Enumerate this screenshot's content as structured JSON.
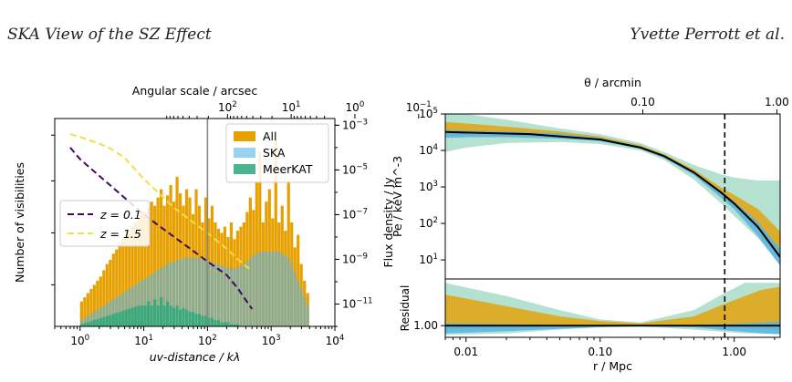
{
  "header": {
    "left_title": "SKA View of the SZ Effect",
    "right_author": "Yvette Perrott et al."
  },
  "colors": {
    "all": "#e6a000",
    "ska": "#56b4e9",
    "meerkat": "#2ca87a",
    "z01": "#3f0a5a",
    "z15": "#f5dd42",
    "right_black": "#000000"
  },
  "chart_data": [
    {
      "type": "histogram",
      "xlabel": "uv-distance / kλ",
      "x_top_label": "Angular scale / arcsec",
      "ylabel": "Number of visibilities",
      "y2label": "Flux density / Jy",
      "x_scale": "log",
      "xlim": [
        0.4,
        10000
      ],
      "x_ticks": [
        1,
        10,
        100,
        1000,
        10000
      ],
      "x_tick_labels": [
        "10^0",
        "10^1",
        "10^2",
        "10^3",
        "10^4"
      ],
      "top_x_ticks": [
        100,
        10,
        1,
        0.1
      ],
      "top_x_tick_labels": [
        "10^2",
        "10^1",
        "10^0",
        "10^-1"
      ],
      "y2_scale": "log",
      "y2lim": [
        1e-12,
        0.002
      ],
      "y2_ticks": [
        0.001,
        1e-05,
        1e-07,
        1e-09,
        1e-11
      ],
      "y2_tick_labels": [
        "10^-3",
        "10^-5",
        "10^-7",
        "10^-9",
        "10^-11"
      ],
      "legend_hist": [
        "All",
        "SKA",
        "MeerKAT"
      ],
      "legend_lines": [
        "z = 0.1",
        "z = 1.5"
      ],
      "legend_hist_position": "top-right",
      "legend_lines_position": "center-left",
      "vline_x": 100,
      "hist_bins": {
        "log10_start": 0,
        "log10_end": 3.6,
        "bins_per_decade": 20
      },
      "series": [
        {
          "name": "All",
          "values": [
            0.12,
            0.14,
            0.16,
            0.18,
            0.2,
            0.22,
            0.24,
            0.27,
            0.3,
            0.32,
            0.35,
            0.37,
            0.4,
            0.42,
            0.44,
            0.46,
            0.48,
            0.5,
            0.52,
            0.55,
            0.55,
            0.57,
            0.6,
            0.58,
            0.62,
            0.66,
            0.58,
            0.63,
            0.68,
            0.6,
            0.72,
            0.64,
            0.58,
            0.66,
            0.62,
            0.54,
            0.66,
            0.58,
            0.5,
            0.62,
            0.52,
            0.58,
            0.5,
            0.47,
            0.45,
            0.48,
            0.43,
            0.5,
            0.42,
            0.46,
            0.48,
            0.5,
            0.55,
            0.62,
            0.56,
            0.7,
            0.84,
            0.5,
            0.6,
            0.66,
            0.52,
            0.9,
            0.5,
            0.58,
            0.46,
            0.7,
            0.5,
            0.38,
            0.44,
            0.3,
            0.22,
            0.16
          ]
        },
        {
          "name": "SKA",
          "values": [
            0.03,
            0.04,
            0.05,
            0.06,
            0.07,
            0.08,
            0.09,
            0.1,
            0.11,
            0.12,
            0.13,
            0.14,
            0.15,
            0.16,
            0.17,
            0.18,
            0.19,
            0.2,
            0.21,
            0.22,
            0.23,
            0.24,
            0.25,
            0.26,
            0.27,
            0.28,
            0.29,
            0.3,
            0.31,
            0.31,
            0.32,
            0.32,
            0.33,
            0.33,
            0.33,
            0.33,
            0.33,
            0.33,
            0.32,
            0.32,
            0.31,
            0.31,
            0.3,
            0.3,
            0.29,
            0.29,
            0.28,
            0.28,
            0.28,
            0.28,
            0.29,
            0.3,
            0.31,
            0.33,
            0.34,
            0.35,
            0.36,
            0.36,
            0.36,
            0.36,
            0.36,
            0.36,
            0.36,
            0.35,
            0.34,
            0.33,
            0.3,
            0.26,
            0.22,
            0.18,
            0.14,
            0.1
          ]
        },
        {
          "name": "MeerKAT",
          "values": [
            0.01,
            0.015,
            0.02,
            0.025,
            0.03,
            0.035,
            0.04,
            0.045,
            0.05,
            0.055,
            0.06,
            0.065,
            0.07,
            0.075,
            0.08,
            0.085,
            0.09,
            0.095,
            0.1,
            0.1,
            0.1,
            0.12,
            0.1,
            0.13,
            0.1,
            0.14,
            0.1,
            0.12,
            0.1,
            0.09,
            0.1,
            0.08,
            0.09,
            0.08,
            0.07,
            0.07,
            0.06,
            0.06,
            0.05,
            0.05,
            0.04,
            0.04,
            0.03,
            0.03,
            0.02,
            0.02,
            0.02,
            0.01,
            0.01,
            0.01,
            0,
            0,
            0,
            0,
            0,
            0,
            0,
            0,
            0,
            0,
            0,
            0,
            0,
            0,
            0,
            0,
            0,
            0,
            0,
            0,
            0,
            0
          ]
        }
      ],
      "lines": [
        {
          "name": "z = 0.1",
          "style": "dashed",
          "x": [
            0.7,
            1,
            3,
            10,
            30,
            100,
            200,
            300,
            400,
            500
          ],
          "y_jy": [
            0.0001,
            3e-05,
            2e-06,
            1e-07,
            1e-08,
            8e-10,
            2e-10,
            5e-11,
            1.5e-11,
            6e-12
          ]
        },
        {
          "name": "z = 1.5",
          "style": "dashed",
          "x": [
            0.7,
            1,
            2,
            3,
            5,
            10,
            30,
            100,
            200,
            300,
            500
          ],
          "y_jy": [
            0.0004,
            0.0003,
            0.00015,
            9e-05,
            3.5e-05,
            4e-06,
            2e-07,
            1.5e-08,
            3e-09,
            1e-09,
            3e-10
          ]
        }
      ]
    },
    {
      "type": "line",
      "xlabel": "r / Mpc",
      "x_top_label": "θ / arcmin",
      "ylabel": "Pe / keV m^-3",
      "ylabel_residual": "Residual",
      "x_scale": "log",
      "xlim": [
        0.007,
        2.2
      ],
      "x_ticks": [
        0.01,
        0.1,
        1
      ],
      "x_tick_labels": [
        "0.01",
        "0.10",
        "1.00"
      ],
      "top_x_ticks": [
        0.1,
        1
      ],
      "top_x_tick_labels": [
        "0.10",
        "1.00"
      ],
      "y_scale": "log",
      "ylim": [
        3,
        100000
      ],
      "y_ticks": [
        10,
        100,
        1000,
        10000,
        100000
      ],
      "y_tick_labels": [
        "10^1",
        "10^2",
        "10^3",
        "10^4",
        "10^5"
      ],
      "residual_ytick": [
        1
      ],
      "residual_ytick_labels": [
        "1.00"
      ],
      "residual_ylim": [
        0.85,
        1.6
      ],
      "vline_x": 0.85,
      "series": [
        {
          "name": "model",
          "x": [
            0.007,
            0.01,
            0.03,
            0.1,
            0.2,
            0.3,
            0.5,
            0.8,
            1.0,
            1.5,
            2.2
          ],
          "y": [
            32000,
            31000,
            28000,
            20000,
            12000,
            7000,
            2500,
            700,
            350,
            80,
            12
          ]
        }
      ],
      "bands": [
        {
          "name": "MeerKAT",
          "x": [
            0.007,
            0.01,
            0.02,
            0.05,
            0.1,
            0.2,
            0.3,
            0.5,
            0.8,
            1.0,
            1.5,
            2.2
          ],
          "lo": [
            9000,
            12000,
            16000,
            17000,
            15000,
            10000,
            5500,
            1600,
            350,
            160,
            40,
            7
          ],
          "hi": [
            130000,
            100000,
            70000,
            40000,
            28000,
            16000,
            9000,
            4000,
            2200,
            1800,
            1500,
            1500
          ]
        },
        {
          "name": "All",
          "x": [
            0.007,
            0.01,
            0.02,
            0.05,
            0.1,
            0.2,
            0.3,
            0.5,
            0.8,
            1.0,
            1.5,
            2.2
          ],
          "lo": [
            25000,
            26000,
            25000,
            23000,
            19000,
            11500,
            6500,
            2300,
            550,
            280,
            60,
            10
          ],
          "hi": [
            60000,
            55000,
            45000,
            33000,
            24000,
            14000,
            7800,
            3000,
            950,
            600,
            250,
            60
          ]
        },
        {
          "name": "SKA",
          "x": [
            0.007,
            0.01,
            0.02,
            0.05,
            0.1,
            0.2,
            0.3,
            0.5,
            0.8,
            1.0,
            1.5,
            2.2
          ],
          "lo": [
            22000,
            23000,
            23000,
            21000,
            18000,
            11000,
            6200,
            2100,
            500,
            240,
            45,
            7
          ],
          "hi": [
            36000,
            35000,
            33000,
            29000,
            22000,
            13000,
            7300,
            2700,
            760,
            400,
            110,
            20
          ]
        }
      ],
      "residual_bands": [
        {
          "name": "MeerKAT",
          "x": [
            0.007,
            0.02,
            0.05,
            0.1,
            0.2,
            0.5,
            0.85,
            1.2,
            1.6,
            2.2
          ],
          "lo": [
            0.88,
            0.9,
            0.95,
            0.98,
            0.99,
            0.95,
            0.92,
            0.9,
            0.9,
            0.9
          ],
          "hi": [
            1.55,
            1.38,
            1.2,
            1.08,
            1.04,
            1.2,
            1.42,
            1.55,
            1.55,
            1.55
          ]
        },
        {
          "name": "All",
          "x": [
            0.007,
            0.02,
            0.05,
            0.1,
            0.2,
            0.5,
            0.85,
            1.2,
            1.6,
            2.2
          ],
          "lo": [
            0.96,
            0.97,
            0.98,
            0.99,
            1.0,
            0.99,
            0.98,
            0.97,
            0.96,
            0.95
          ],
          "hi": [
            1.4,
            1.25,
            1.12,
            1.06,
            1.03,
            1.12,
            1.28,
            1.38,
            1.46,
            1.5
          ]
        },
        {
          "name": "SKA",
          "x": [
            0.007,
            0.02,
            0.05,
            0.1,
            0.2,
            0.5,
            0.85,
            1.2,
            1.6,
            2.2
          ],
          "lo": [
            0.9,
            0.93,
            0.96,
            0.98,
            0.99,
            0.98,
            0.94,
            0.92,
            0.9,
            0.89
          ],
          "hi": [
            1.03,
            1.02,
            1.01,
            1.01,
            1.01,
            1.01,
            1.02,
            1.03,
            1.04,
            1.05
          ]
        }
      ]
    }
  ]
}
